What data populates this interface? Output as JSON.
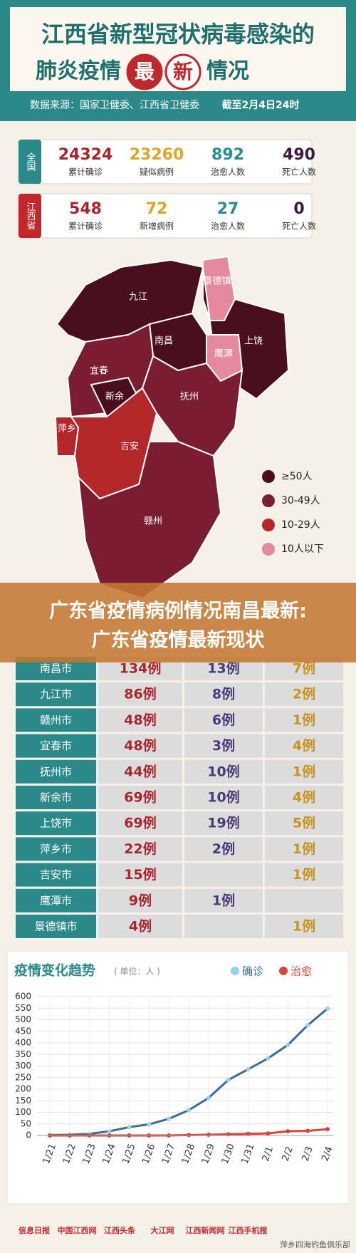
{
  "header": {
    "title_line1": "江西省新型冠状病毒感染的",
    "title_line2": "肺炎疫情",
    "badge": [
      "最",
      "新"
    ],
    "title_line2_end": "情况",
    "source": "数据来源：国家卫健委、江西省卫健委",
    "as_of": "截至2月4日24时"
  },
  "stats": [
    {
      "region": "全国",
      "items": [
        {
          "value": 24324,
          "label": "累计确诊",
          "color": "#a8252d"
        },
        {
          "value": 23260,
          "label": "疑似病例",
          "color": "#e0a426"
        },
        {
          "value": 892,
          "label": "治愈人数",
          "color": "#2a8e8c"
        },
        {
          "value": 490,
          "label": "死亡人数",
          "color": "#3c1a40"
        }
      ]
    },
    {
      "region": "江西省",
      "items": [
        {
          "value": 548,
          "label": "累计确诊",
          "color": "#a8252d"
        },
        {
          "value": 72,
          "label": "新增病例",
          "color": "#e0a426"
        },
        {
          "value": 27,
          "label": "治愈人数",
          "color": "#2a8e8c"
        },
        {
          "value": 0,
          "label": "死亡人数",
          "color": "#3c1a40"
        }
      ]
    }
  ],
  "map": {
    "regions": [
      {
        "label": "九江",
        "color": "#4a0f1f"
      },
      {
        "label": "景德镇",
        "color": "#e5899d"
      },
      {
        "label": "上饶",
        "color": "#4a0f1f"
      },
      {
        "label": "鹰潭",
        "color": "#e5899d"
      },
      {
        "label": "南昌",
        "color": "#4a0f1f"
      },
      {
        "label": "宜春",
        "color": "#7b1d30"
      },
      {
        "label": "新余",
        "color": "#4a0f1f"
      },
      {
        "label": "抚州",
        "color": "#7b1d30"
      },
      {
        "label": "萍乡",
        "color": "#b3262a"
      },
      {
        "label": "吉安",
        "color": "#b3262a"
      },
      {
        "label": "赣州",
        "color": "#7b1d30"
      }
    ],
    "legend": [
      {
        "label": "≥50人",
        "color": "#4a0f1f"
      },
      {
        "label": "30-49人",
        "color": "#7b1d30"
      },
      {
        "label": "10-29人",
        "color": "#b3262a"
      },
      {
        "label": "10人以下",
        "color": "#e5899d"
      }
    ]
  },
  "banner": [
    "广东省疫情病例情况南昌最新:",
    "广东省疫情最新现状"
  ],
  "table": {
    "rows": [
      [
        "南昌市",
        "134例",
        "13例",
        "7例"
      ],
      [
        "九江市",
        "86例",
        "8例",
        "2例"
      ],
      [
        "赣州市",
        "48例",
        "6例",
        "1例"
      ],
      [
        "宜春市",
        "48例",
        "3例",
        "4例"
      ],
      [
        "抚州市",
        "44例",
        "10例",
        "1例"
      ],
      [
        "新余市",
        "69例",
        "10例",
        "4例"
      ],
      [
        "上饶市",
        "69例",
        "19例",
        "5例"
      ],
      [
        "萍乡市",
        "22例",
        "2例",
        "1例"
      ],
      [
        "吉安市",
        "15例",
        null,
        "1例"
      ],
      [
        "鹰潭市",
        "9例",
        "1例",
        null
      ],
      [
        "景德镇市",
        "4例",
        null,
        "1例"
      ]
    ]
  },
  "chart_data": {
    "type": "line",
    "title": "疫情变化趋势",
    "subtitle": "( 单位：人 )",
    "categories": [
      "1/21",
      "1/22",
      "1/23",
      "1/24",
      "1/25",
      "1/26",
      "1/27",
      "1/28",
      "1/29",
      "1/30",
      "1/31",
      "2/1",
      "2/2",
      "2/3",
      "2/4"
    ],
    "series": [
      {
        "name": "确诊",
        "color": "#3d6c8c",
        "marker": "#8fd3ee",
        "values": [
          2,
          3,
          7,
          18,
          36,
          48,
          72,
          109,
          162,
          240,
          286,
          333,
          391,
          476,
          548
        ]
      },
      {
        "name": "治愈",
        "color": "#d9453a",
        "marker": "#d9453a",
        "values": [
          0,
          0,
          0,
          0,
          0,
          0,
          0,
          2,
          3,
          5,
          7,
          9,
          18,
          20,
          27
        ]
      }
    ],
    "ylim": [
      0,
      600
    ],
    "yticks": [
      0,
      50,
      100,
      150,
      200,
      250,
      300,
      350,
      400,
      450,
      500,
      550,
      600
    ],
    "grid": true
  },
  "footer": {
    "logos": [
      "信息日报",
      "中国江西网",
      "江西头条",
      "大江网",
      "江西新闻网",
      "江西手机报"
    ],
    "account": "萍乡四海钓鱼俱乐部"
  }
}
